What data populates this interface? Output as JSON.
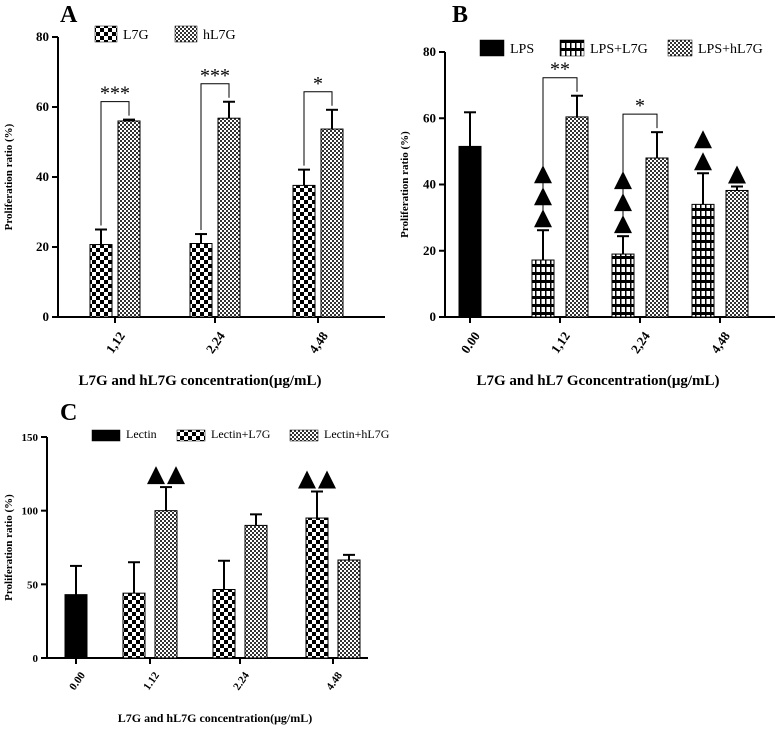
{
  "chart_data": [
    {
      "panel": "A",
      "type": "bar",
      "categories": [
        "1.12",
        "2.24",
        "4.48"
      ],
      "series": [
        {
          "name": "L7G",
          "pattern": "checker",
          "values": [
            20.7,
            21.0,
            37.6
          ],
          "errors": [
            4.3,
            2.7,
            4.5
          ]
        },
        {
          "name": "hL7G",
          "pattern": "mesh",
          "values": [
            56.0,
            56.8,
            53.7
          ],
          "errors": [
            0.4,
            4.7,
            5.5
          ]
        }
      ],
      "ylabel": "Proliferation ratio (%)",
      "xlabel": "L7G and hL7G concentration(μg/mL)",
      "ylim": [
        0,
        80
      ],
      "yticks": [
        0,
        20,
        40,
        60,
        80
      ],
      "annotations": [
        {
          "text": "***",
          "category": 0
        },
        {
          "text": "***",
          "category": 1
        },
        {
          "text": "*",
          "category": 2
        }
      ]
    },
    {
      "panel": "B",
      "type": "bar",
      "categories": [
        "0.00",
        "1.12",
        "2.24",
        "4.48"
      ],
      "series": [
        {
          "name": "LPS",
          "pattern": "solid",
          "values": [
            51.5,
            null,
            null,
            null
          ],
          "errors": [
            10.3,
            null,
            null,
            null
          ]
        },
        {
          "name": "LPS+L7G",
          "pattern": "brick",
          "values": [
            null,
            17.2,
            19.0,
            34.0
          ],
          "errors": [
            null,
            9.0,
            5.4,
            9.4
          ]
        },
        {
          "name": "LPS+hL7G",
          "pattern": "mesh",
          "values": [
            null,
            60.4,
            48.0,
            38.2
          ],
          "errors": [
            null,
            6.4,
            7.8,
            1.2
          ]
        }
      ],
      "ylabel": "Proliferation ratio (%)",
      "xlabel": "L7G and hL7 Gconcentration(μg/mL)",
      "ylim": [
        0,
        80
      ],
      "yticks": [
        0,
        20,
        40,
        60,
        80
      ],
      "annotations": [
        {
          "text": "**",
          "category": 1
        },
        {
          "text": "*",
          "category": 2
        }
      ],
      "triangles": [
        {
          "category": 1,
          "series": 1,
          "count": 3
        },
        {
          "category": 2,
          "series": 1,
          "count": 3
        },
        {
          "category": 3,
          "series": 1,
          "count": 2
        },
        {
          "category": 3,
          "series": 2,
          "count": 1
        }
      ]
    },
    {
      "panel": "C",
      "type": "bar",
      "categories": [
        "0.00",
        "1.12",
        "2.24",
        "4.48"
      ],
      "series": [
        {
          "name": "Lectin",
          "pattern": "solid",
          "values": [
            43.0,
            null,
            null,
            null
          ],
          "errors": [
            19.5,
            null,
            null,
            null
          ]
        },
        {
          "name": "Lectin+L7G",
          "pattern": "checker",
          "values": [
            null,
            44.0,
            46.5,
            95.0
          ],
          "errors": [
            null,
            21.0,
            19.5,
            18.0
          ]
        },
        {
          "name": "Lectin+hL7G",
          "pattern": "mesh",
          "values": [
            null,
            100.0,
            90.0,
            66.5
          ],
          "errors": [
            null,
            16.0,
            7.5,
            3.5
          ]
        }
      ],
      "ylabel": "Proliferation ratio (%)",
      "xlabel": "L7G and hL7G concentration(μg/mL)",
      "ylim": [
        0,
        150
      ],
      "yticks": [
        0,
        50,
        100,
        150
      ],
      "triangles": [
        {
          "category": 1,
          "series": 2,
          "count": 2
        },
        {
          "category": 3,
          "series": 1,
          "count": 2
        }
      ]
    }
  ]
}
